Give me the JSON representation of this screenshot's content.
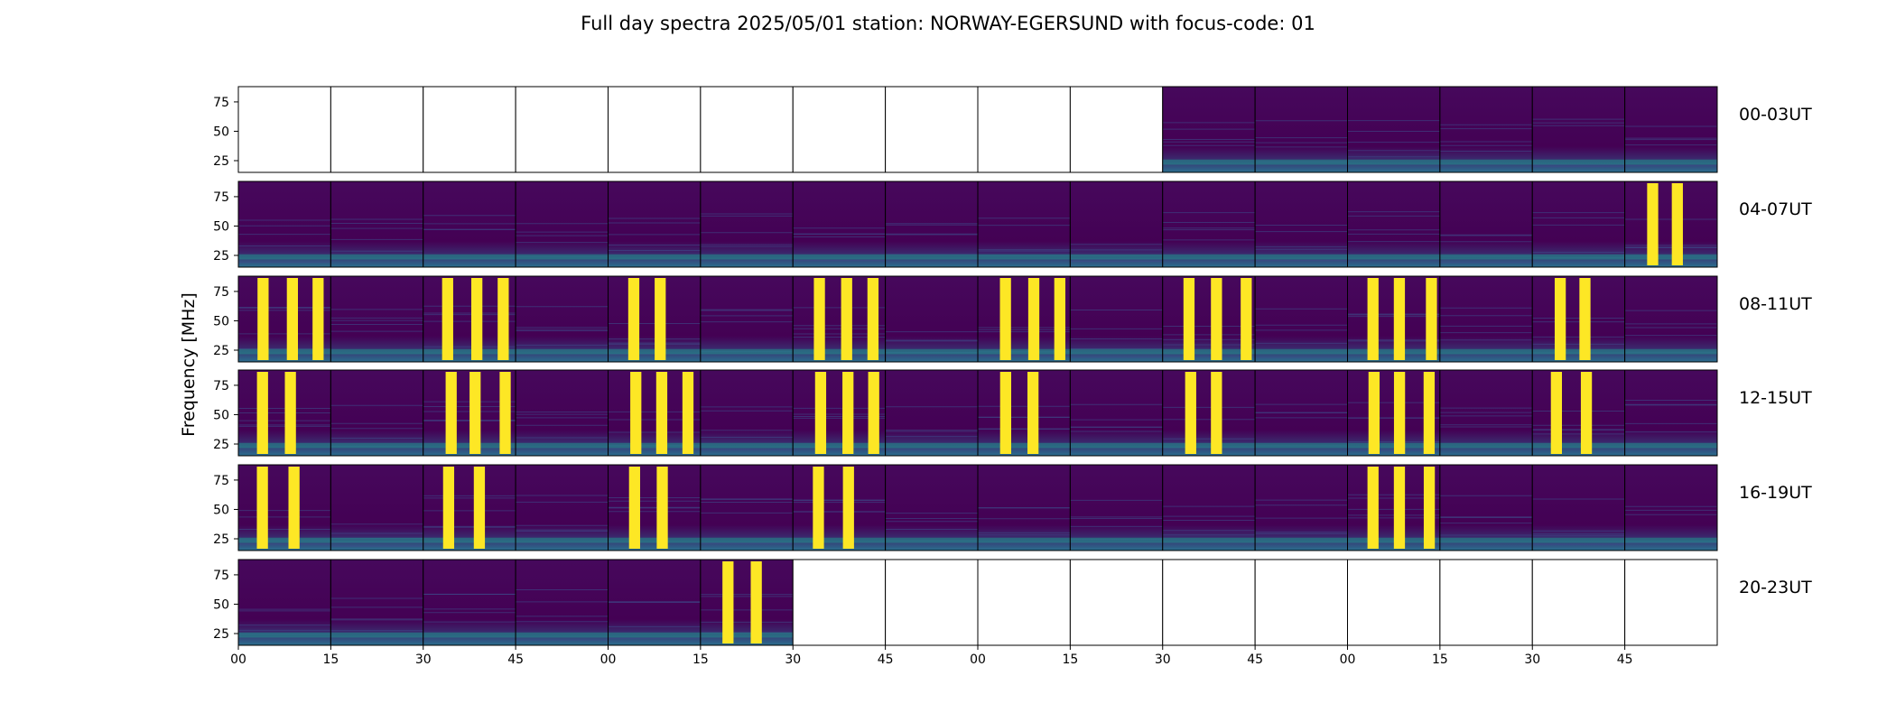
{
  "title": "Full day spectra 2025/05/01 station: NORWAY-EGERSUND with focus-code: 01",
  "colors": {
    "low": "#440154",
    "mid": "#21918c",
    "high": "#fde725",
    "empty": "#ffffff",
    "frame": "#000000"
  },
  "chart_data": {
    "type": "heatmap",
    "colormap": "viridis",
    "ylabel": "Frequency [MHz]",
    "yticks": [
      "75",
      "50",
      "25"
    ],
    "ylim": [
      15,
      88
    ],
    "xticks": [
      "00",
      "15",
      "30",
      "45",
      "00",
      "15",
      "30",
      "45",
      "00",
      "15",
      "30",
      "45",
      "00",
      "15",
      "30",
      "45"
    ],
    "rows": [
      {
        "label": "00-03UT",
        "panels": [
          "empty",
          "empty",
          "empty",
          "empty",
          "empty",
          "empty",
          "empty",
          "empty",
          "empty",
          "empty",
          "data",
          "data",
          "data",
          "data",
          "data",
          "data"
        ]
      },
      {
        "label": "04-07UT",
        "panels": [
          "data",
          "data",
          "data",
          "data",
          "data",
          "data",
          "data",
          "data",
          "data",
          "data",
          "data",
          "data",
          "data",
          "data",
          "data",
          "data"
        ]
      },
      {
        "label": "08-11UT",
        "panels": [
          "data",
          "data",
          "data",
          "data",
          "data",
          "data",
          "data",
          "data",
          "data",
          "data",
          "data",
          "data",
          "data",
          "data",
          "data",
          "data"
        ]
      },
      {
        "label": "12-15UT",
        "panels": [
          "data",
          "data",
          "data",
          "data",
          "data",
          "data",
          "data",
          "data",
          "data",
          "data",
          "data",
          "data",
          "data",
          "data",
          "data",
          "data"
        ]
      },
      {
        "label": "16-19UT",
        "panels": [
          "data",
          "data",
          "data",
          "data",
          "data",
          "data",
          "data",
          "data",
          "data",
          "data",
          "data",
          "data",
          "data",
          "data",
          "data",
          "data"
        ]
      },
      {
        "label": "20-23UT",
        "panels": [
          "data",
          "data",
          "data",
          "data",
          "data",
          "data",
          "empty",
          "empty",
          "empty",
          "empty",
          "empty",
          "empty",
          "empty",
          "empty",
          "empty",
          "empty"
        ]
      }
    ],
    "bursts": [
      {
        "row": 2,
        "panel": 0,
        "intensity": "bright"
      },
      {
        "row": 2,
        "panel": 2,
        "intensity": "bright"
      },
      {
        "row": 2,
        "panel": 4,
        "intensity": "bright"
      },
      {
        "row": 2,
        "panel": 6,
        "intensity": "bright"
      },
      {
        "row": 2,
        "panel": 8,
        "intensity": "bright"
      },
      {
        "row": 2,
        "panel": 10,
        "intensity": "bright"
      },
      {
        "row": 2,
        "panel": 12,
        "intensity": "bright"
      },
      {
        "row": 2,
        "panel": 14,
        "intensity": "bright"
      },
      {
        "row": 3,
        "panel": 0,
        "intensity": "bright"
      },
      {
        "row": 3,
        "panel": 2,
        "intensity": "bright"
      },
      {
        "row": 3,
        "panel": 4,
        "intensity": "bright"
      },
      {
        "row": 3,
        "panel": 6,
        "intensity": "bright"
      },
      {
        "row": 3,
        "panel": 8,
        "intensity": "bright"
      },
      {
        "row": 3,
        "panel": 10,
        "intensity": "bright"
      },
      {
        "row": 3,
        "panel": 12,
        "intensity": "bright"
      },
      {
        "row": 3,
        "panel": 14,
        "intensity": "bright"
      },
      {
        "row": 4,
        "panel": 0,
        "intensity": "bright"
      },
      {
        "row": 4,
        "panel": 2,
        "intensity": "bright"
      },
      {
        "row": 4,
        "panel": 4,
        "intensity": "bright"
      },
      {
        "row": 4,
        "panel": 6,
        "intensity": "bright"
      },
      {
        "row": 4,
        "panel": 12,
        "intensity": "bright"
      },
      {
        "row": 5,
        "panel": 5,
        "intensity": "bright"
      },
      {
        "row": 1,
        "panel": 15,
        "intensity": "bright"
      }
    ]
  }
}
